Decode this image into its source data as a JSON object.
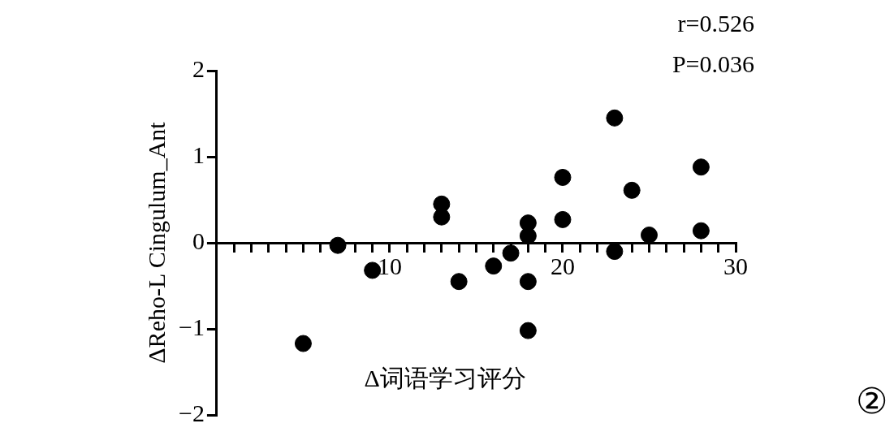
{
  "chart_data": {
    "type": "scatter",
    "xlabel": "Δ词语学习评分",
    "ylabel": "ΔReho-L Cingulum_Ant",
    "annotations": [
      "r=0.526",
      "P=0.036",
      "②"
    ],
    "series": [
      {
        "color": "#000000",
        "x": [
          5,
          7,
          9,
          13,
          13,
          14,
          16,
          17,
          18,
          18,
          18,
          18,
          20,
          20,
          23,
          23,
          24,
          25,
          28,
          28
        ],
        "values": [
          -1.17,
          -0.03,
          -0.32,
          0.45,
          0.3,
          -0.45,
          -0.27,
          -0.12,
          0.23,
          0.08,
          -0.45,
          -1.02,
          0.76,
          0.27,
          1.45,
          -0.1,
          0.61,
          0.09,
          0.88,
          0.14
        ]
      }
    ],
    "marker": "circle",
    "grid": false,
    "legend": false,
    "xlim": [
      0,
      30
    ],
    "xticks": [
      {
        "value": 1,
        "label": null
      },
      {
        "value": 2,
        "label": null
      },
      {
        "value": 3,
        "label": null
      },
      {
        "value": 4,
        "label": null
      },
      {
        "value": 5,
        "label": null
      },
      {
        "value": 6,
        "label": null
      },
      {
        "value": 7,
        "label": null
      },
      {
        "value": 8,
        "label": null
      },
      {
        "value": 9,
        "label": null
      },
      10,
      {
        "value": 11,
        "label": null
      },
      {
        "value": 12,
        "label": null
      },
      {
        "value": 13,
        "label": null
      },
      {
        "value": 14,
        "label": null
      },
      {
        "value": 15,
        "label": null
      },
      {
        "value": 16,
        "label": null
      },
      {
        "value": 17,
        "label": null
      },
      {
        "value": 18,
        "label": null
      },
      {
        "value": 19,
        "label": null
      },
      20,
      {
        "value": 21,
        "label": null
      },
      {
        "value": 22,
        "label": null
      },
      {
        "value": 23,
        "label": null
      },
      {
        "value": 24,
        "label": null
      },
      {
        "value": 25,
        "label": null
      },
      {
        "value": 26,
        "label": null
      },
      {
        "value": 27,
        "label": null
      },
      {
        "value": 28,
        "label": null
      },
      {
        "value": 29,
        "label": null
      },
      30
    ],
    "ylim": [
      -2,
      2
    ],
    "yticks": [
      -2,
      -1,
      0,
      1,
      2
    ]
  }
}
